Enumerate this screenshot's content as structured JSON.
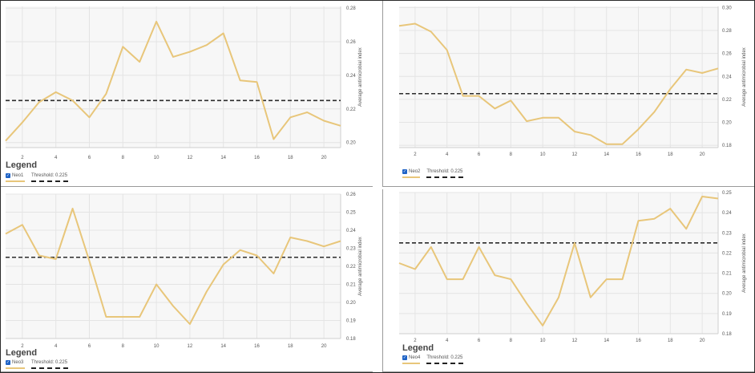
{
  "legend_heading": "Legend",
  "colors": {
    "series": "#e8c67a",
    "threshold": "#2b2b2b",
    "grid": "#e4e4e4",
    "checkbox": "#1f63c6"
  },
  "panels": [
    {
      "ylabel": "Average antimicrobial index",
      "series_name": "Neo1",
      "threshold_label": "Threshold: 0.225",
      "ticks_y": [
        "0.20",
        "0.22",
        "0.24",
        "0.26",
        "0.28"
      ],
      "ticks_x": [
        "2",
        "4",
        "6",
        "8",
        "10",
        "12",
        "14",
        "16",
        "18",
        "20"
      ]
    },
    {
      "ylabel": "Average antimicrobial index",
      "series_name": "Neo2",
      "threshold_label": "Threshold: 0.225",
      "ticks_y": [
        "0.18",
        "0.20",
        "0.22",
        "0.24",
        "0.26",
        "0.28",
        "0.30"
      ],
      "ticks_x": [
        "2",
        "4",
        "6",
        "8",
        "10",
        "12",
        "14",
        "16",
        "18",
        "20"
      ]
    },
    {
      "ylabel": "Average antimicrobial index",
      "series_name": "Neo3",
      "threshold_label": "Threshold: 0.225",
      "ticks_y": [
        "0.18",
        "0.19",
        "0.20",
        "0.21",
        "0.22",
        "0.23",
        "0.24",
        "0.25",
        "0.26"
      ],
      "ticks_x": [
        "2",
        "4",
        "6",
        "8",
        "10",
        "12",
        "14",
        "16",
        "18",
        "20"
      ]
    },
    {
      "ylabel": "Average antimicrobial index",
      "series_name": "Neo4",
      "threshold_label": "Threshold: 0.225",
      "ticks_y": [
        "0.18",
        "0.19",
        "0.20",
        "0.21",
        "0.22",
        "0.23",
        "0.24",
        "0.25"
      ],
      "ticks_x": [
        "2",
        "4",
        "6",
        "8",
        "10",
        "12",
        "14",
        "16",
        "18",
        "20"
      ]
    }
  ],
  "chart_data": [
    {
      "type": "line",
      "x": [
        1,
        2,
        3,
        4,
        5,
        6,
        7,
        8,
        9,
        10,
        11,
        12,
        13,
        14,
        15,
        16,
        17,
        18,
        19,
        20,
        21
      ],
      "series": [
        {
          "name": "Neo1",
          "values": [
            0.201,
            0.212,
            0.224,
            0.23,
            0.225,
            0.215,
            0.229,
            0.257,
            0.248,
            0.272,
            0.251,
            0.254,
            0.258,
            0.265,
            0.237,
            0.236,
            0.202,
            0.215,
            0.218,
            0.213,
            0.21
          ]
        }
      ],
      "threshold": 0.225,
      "ylim": [
        0.197,
        0.281
      ],
      "xlim": [
        1,
        21
      ],
      "ylabel": "Average antimicrobial index",
      "grid": true,
      "legend_position": "bottom-left"
    },
    {
      "type": "line",
      "x": [
        1,
        2,
        3,
        4,
        5,
        6,
        7,
        8,
        9,
        10,
        11,
        12,
        13,
        14,
        15,
        16,
        17,
        18,
        19,
        20,
        21
      ],
      "series": [
        {
          "name": "Neo2",
          "values": [
            0.284,
            0.286,
            0.279,
            0.263,
            0.223,
            0.223,
            0.212,
            0.219,
            0.201,
            0.204,
            0.204,
            0.192,
            0.189,
            0.181,
            0.181,
            0.194,
            0.209,
            0.229,
            0.246,
            0.243,
            0.247
          ]
        }
      ],
      "threshold": 0.225,
      "ylim": [
        0.178,
        0.301
      ],
      "xlim": [
        1,
        21
      ],
      "ylabel": "Average antimicrobial index",
      "grid": true,
      "legend_position": "bottom-left"
    },
    {
      "type": "line",
      "x": [
        1,
        2,
        3,
        4,
        5,
        6,
        7,
        8,
        9,
        10,
        11,
        12,
        13,
        14,
        15,
        16,
        17,
        18,
        19,
        20,
        21
      ],
      "series": [
        {
          "name": "Neo3",
          "values": [
            0.238,
            0.243,
            0.226,
            0.224,
            0.252,
            0.223,
            0.192,
            0.192,
            0.192,
            0.21,
            0.198,
            0.188,
            0.206,
            0.221,
            0.229,
            0.226,
            0.216,
            0.236,
            0.234,
            0.231,
            0.234
          ]
        }
      ],
      "threshold": 0.225,
      "ylim": [
        0.18,
        0.26
      ],
      "xlim": [
        1,
        21
      ],
      "ylabel": "Average antimicrobial index",
      "grid": true,
      "legend_position": "bottom-left"
    },
    {
      "type": "line",
      "x": [
        1,
        2,
        3,
        4,
        5,
        6,
        7,
        8,
        9,
        10,
        11,
        12,
        13,
        14,
        15,
        16,
        17,
        18,
        19,
        20,
        21
      ],
      "series": [
        {
          "name": "Neo4",
          "values": [
            0.215,
            0.212,
            0.223,
            0.207,
            0.207,
            0.223,
            0.209,
            0.207,
            0.195,
            0.184,
            0.198,
            0.225,
            0.198,
            0.207,
            0.207,
            0.236,
            0.237,
            0.242,
            0.232,
            0.248,
            0.247
          ]
        }
      ],
      "threshold": 0.225,
      "ylim": [
        0.18,
        0.25
      ],
      "xlim": [
        1,
        21
      ],
      "ylabel": "Average antimicrobial index",
      "grid": true,
      "legend_position": "bottom-left"
    }
  ]
}
